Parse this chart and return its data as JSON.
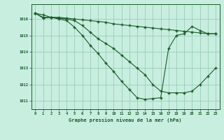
{
  "title": "Graphe pression niveau de la mer (hPa)",
  "bg_color": "#c8eee0",
  "grid_color": "#90c8b0",
  "line_color": "#1a5c28",
  "xlim": [
    -0.5,
    23.5
  ],
  "ylim": [
    1010.5,
    1016.9
  ],
  "yticks": [
    1011,
    1012,
    1013,
    1014,
    1015,
    1016
  ],
  "xticks": [
    0,
    1,
    2,
    3,
    4,
    5,
    6,
    7,
    8,
    9,
    10,
    11,
    12,
    13,
    14,
    15,
    16,
    17,
    18,
    19,
    20,
    21,
    22,
    23
  ],
  "series1": [
    1016.35,
    1016.25,
    1016.1,
    1016.1,
    1016.05,
    1016.0,
    1015.95,
    1015.9,
    1015.85,
    1015.8,
    1015.7,
    1015.65,
    1015.6,
    1015.55,
    1015.5,
    1015.45,
    1015.4,
    1015.35,
    1015.3,
    1015.25,
    1015.2,
    1015.15,
    1015.1,
    1015.1
  ],
  "series2": [
    1016.35,
    1016.1,
    1016.1,
    1016.05,
    1016.0,
    1015.9,
    1015.6,
    1015.2,
    1014.8,
    1014.5,
    1014.2,
    1013.8,
    1013.4,
    1013.0,
    1012.6,
    1012.0,
    1011.6,
    1011.5,
    1011.5,
    1011.5,
    1011.6,
    1012.0,
    1012.5,
    1013.0
  ],
  "series3": [
    1016.35,
    1016.05,
    1016.1,
    1016.0,
    1015.9,
    1015.5,
    1015.0,
    1014.4,
    1013.9,
    1013.3,
    1012.8,
    1012.2,
    1011.7,
    1011.2,
    1011.1,
    1011.15,
    1011.2,
    1014.2,
    1015.0,
    1015.1,
    1015.55,
    1015.3,
    1015.1,
    1015.1
  ]
}
